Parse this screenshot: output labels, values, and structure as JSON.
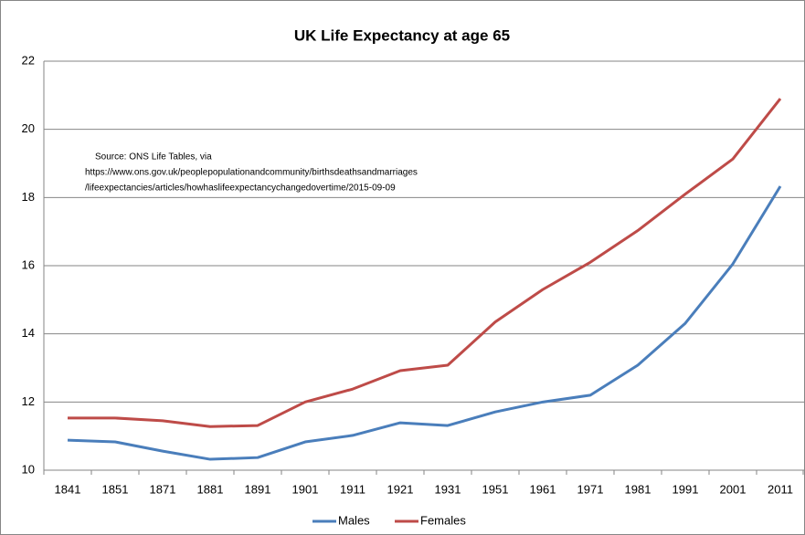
{
  "chart_data": {
    "type": "line",
    "title": "UK Life Expectancy at age 65",
    "annotation": [
      "Source: ONS Life Tables, via",
      "https://www.ons.gov.uk/peoplepopulationandcommunity/birthsdeathsandmarriages",
      "/lifeexpectancies/articles/howhaslifeexpectancychangedovertime/2015-09-09"
    ],
    "categories": [
      "1841",
      "1851",
      "1871",
      "1881",
      "1891",
      "1901",
      "1911",
      "1921",
      "1931",
      "1951",
      "1961",
      "1971",
      "1981",
      "1991",
      "2001",
      "2011"
    ],
    "series": [
      {
        "name": "Males",
        "color": "#4a7ebb",
        "values": [
          10.88,
          10.83,
          10.56,
          10.32,
          10.37,
          10.83,
          11.02,
          11.39,
          11.31,
          11.71,
          12.0,
          12.2,
          13.08,
          14.31,
          16.05,
          18.33
        ]
      },
      {
        "name": "Females",
        "color": "#be4b48",
        "values": [
          11.53,
          11.53,
          11.45,
          11.28,
          11.31,
          12.0,
          12.38,
          12.92,
          13.08,
          14.35,
          15.3,
          16.1,
          17.03,
          18.1,
          19.13,
          20.9
        ]
      }
    ],
    "ylim": [
      10,
      22
    ],
    "yticks": [
      10,
      12,
      14,
      16,
      18,
      20,
      22
    ],
    "grid": true,
    "legend": "bottom"
  }
}
